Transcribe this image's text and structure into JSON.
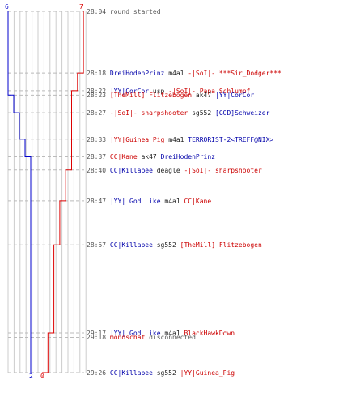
{
  "colors": {
    "blue_team": "#0000cc",
    "red_team": "#dd0000",
    "axis": "#777777",
    "guide": "#cccccc",
    "dash": "#bbbbbb"
  },
  "scores": {
    "blue_start": "6",
    "red_start": "7",
    "blue_end": "2",
    "red_end": "0"
  },
  "events": [
    {
      "time": "28:04",
      "parts": [
        {
          "text": "round started",
          "color": "gray"
        }
      ],
      "blue": 6,
      "red": 7
    },
    {
      "time": "28:18",
      "parts": [
        {
          "text": "DreiHodenPrinz",
          "color": "blue"
        },
        {
          "text": "m4a1",
          "color": "dark"
        },
        {
          "text": "-|SoI|- ***Sir_Dodger***",
          "color": "red"
        }
      ],
      "blue": 6,
      "red": 6
    },
    {
      "time": "28:22",
      "parts": [
        {
          "text": "|YY|CorCor",
          "color": "blue"
        },
        {
          "text": "usp",
          "color": "dark"
        },
        {
          "text": "-|SoI|- Papa Schlumpf",
          "color": "red"
        }
      ],
      "blue": 6,
      "red": 5
    },
    {
      "time": "28:23",
      "parts": [
        {
          "text": "[TheMill] Flitzebogen",
          "color": "red"
        },
        {
          "text": "ak47",
          "color": "dark"
        },
        {
          "text": "|YY|CorCor",
          "color": "blue"
        }
      ],
      "blue": 5,
      "red": 5
    },
    {
      "time": "28:27",
      "parts": [
        {
          "text": "-|SoI|- sharpshooter",
          "color": "red"
        },
        {
          "text": "sg552",
          "color": "dark"
        },
        {
          "text": "[GOD]Schweizer",
          "color": "blue"
        }
      ],
      "blue": 4,
      "red": 5
    },
    {
      "time": "28:33",
      "parts": [
        {
          "text": "|YY|Guinea_Pig",
          "color": "red"
        },
        {
          "text": "m4a1",
          "color": "dark"
        },
        {
          "text": "TERRORIST-2<TREFF@NIX>",
          "color": "blue"
        }
      ],
      "blue": 3,
      "red": 5
    },
    {
      "time": "28:37",
      "parts": [
        {
          "text": "CC|Kane",
          "color": "red"
        },
        {
          "text": "ak47",
          "color": "dark"
        },
        {
          "text": "DreiHodenPrinz",
          "color": "blue"
        }
      ],
      "blue": 2,
      "red": 5
    },
    {
      "time": "28:40",
      "parts": [
        {
          "text": "CC|Killabee",
          "color": "blue"
        },
        {
          "text": "deagle",
          "color": "dark"
        },
        {
          "text": "-|SoI|- sharpshooter",
          "color": "red"
        }
      ],
      "blue": 2,
      "red": 4
    },
    {
      "time": "28:47",
      "parts": [
        {
          "text": "|YY| God Like",
          "color": "blue"
        },
        {
          "text": "m4a1",
          "color": "dark"
        },
        {
          "text": "CC|Kane",
          "color": "red"
        }
      ],
      "blue": 2,
      "red": 3
    },
    {
      "time": "28:57",
      "parts": [
        {
          "text": "CC|Killabee",
          "color": "blue"
        },
        {
          "text": "sg552",
          "color": "dark"
        },
        {
          "text": "[TheMill] Flitzebogen",
          "color": "red"
        }
      ],
      "blue": 2,
      "red": 2
    },
    {
      "time": "29:17",
      "parts": [
        {
          "text": "|YY| God Like",
          "color": "blue"
        },
        {
          "text": "m4a1",
          "color": "dark"
        },
        {
          "text": "BlackHawkDown",
          "color": "red"
        }
      ],
      "blue": 2,
      "red": 1
    },
    {
      "time": "29:18",
      "parts": [
        {
          "text": "mondschaf",
          "color": "red"
        },
        {
          "text": "disconnected",
          "color": "gray"
        }
      ],
      "blue": 2,
      "red": 1
    },
    {
      "time": "29:26",
      "parts": [
        {
          "text": "CC|Killabee",
          "color": "blue"
        },
        {
          "text": "sg552",
          "color": "dark"
        },
        {
          "text": "|YY|Guinea_Pig",
          "color": "red"
        }
      ],
      "blue": 2,
      "red": 0
    }
  ]
}
